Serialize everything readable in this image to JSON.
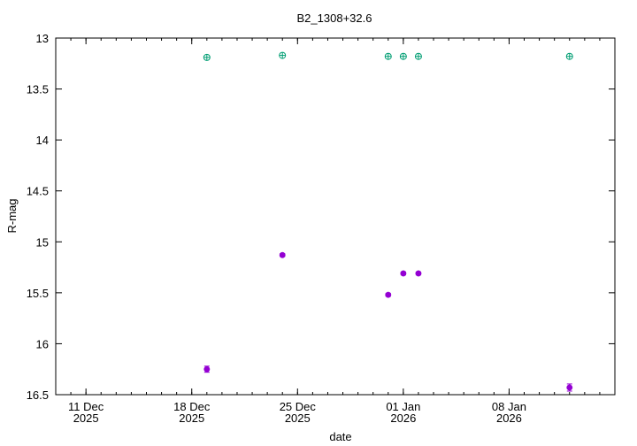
{
  "chart_data": {
    "type": "scatter",
    "title": "B2_1308+32.6",
    "xlabel": "date",
    "ylabel": "R-mag",
    "x_axis": {
      "type": "date",
      "min": "2025-12-09",
      "max": "2026-01-15",
      "ticks": [
        {
          "date": "2025-12-11",
          "line1": "11 Dec",
          "line2": "2025"
        },
        {
          "date": "2025-12-18",
          "line1": "18 Dec",
          "line2": "2025"
        },
        {
          "date": "2025-12-25",
          "line1": "25 Dec",
          "line2": "2025"
        },
        {
          "date": "2026-01-01",
          "line1": "01 Jan",
          "line2": "2026"
        },
        {
          "date": "2026-01-08",
          "line1": "08 Jan",
          "line2": "2026"
        }
      ]
    },
    "y_axis": {
      "reversed": true,
      "min": 13,
      "max": 16.5,
      "ticks": [
        "13",
        "13.5",
        "14",
        "14.5",
        "15",
        "15.5",
        "16",
        "16.5"
      ]
    },
    "grid": false,
    "legend": "none",
    "series": [
      {
        "color": "#9400d3",
        "marker": "filled-circle",
        "points": [
          {
            "date": "2025-12-19",
            "y": 16.25,
            "err": 0.03
          },
          {
            "date": "2025-12-24",
            "y": 15.13,
            "err": 0.015
          },
          {
            "date": "2025-12-31",
            "y": 15.52,
            "err": 0.015
          },
          {
            "date": "2026-01-01",
            "y": 15.31,
            "err": 0.015
          },
          {
            "date": "2026-01-02",
            "y": 15.31,
            "err": 0.015
          },
          {
            "date": "2026-01-12",
            "y": 16.43,
            "err": 0.035
          }
        ]
      },
      {
        "color": "#009e73",
        "marker": "open-circle-plus",
        "points": [
          {
            "date": "2025-12-19",
            "y": 13.19
          },
          {
            "date": "2025-12-24",
            "y": 13.17
          },
          {
            "date": "2025-12-31",
            "y": 13.18
          },
          {
            "date": "2026-01-01",
            "y": 13.18
          },
          {
            "date": "2026-01-02",
            "y": 13.18
          },
          {
            "date": "2026-01-12",
            "y": 13.18
          }
        ]
      }
    ]
  }
}
